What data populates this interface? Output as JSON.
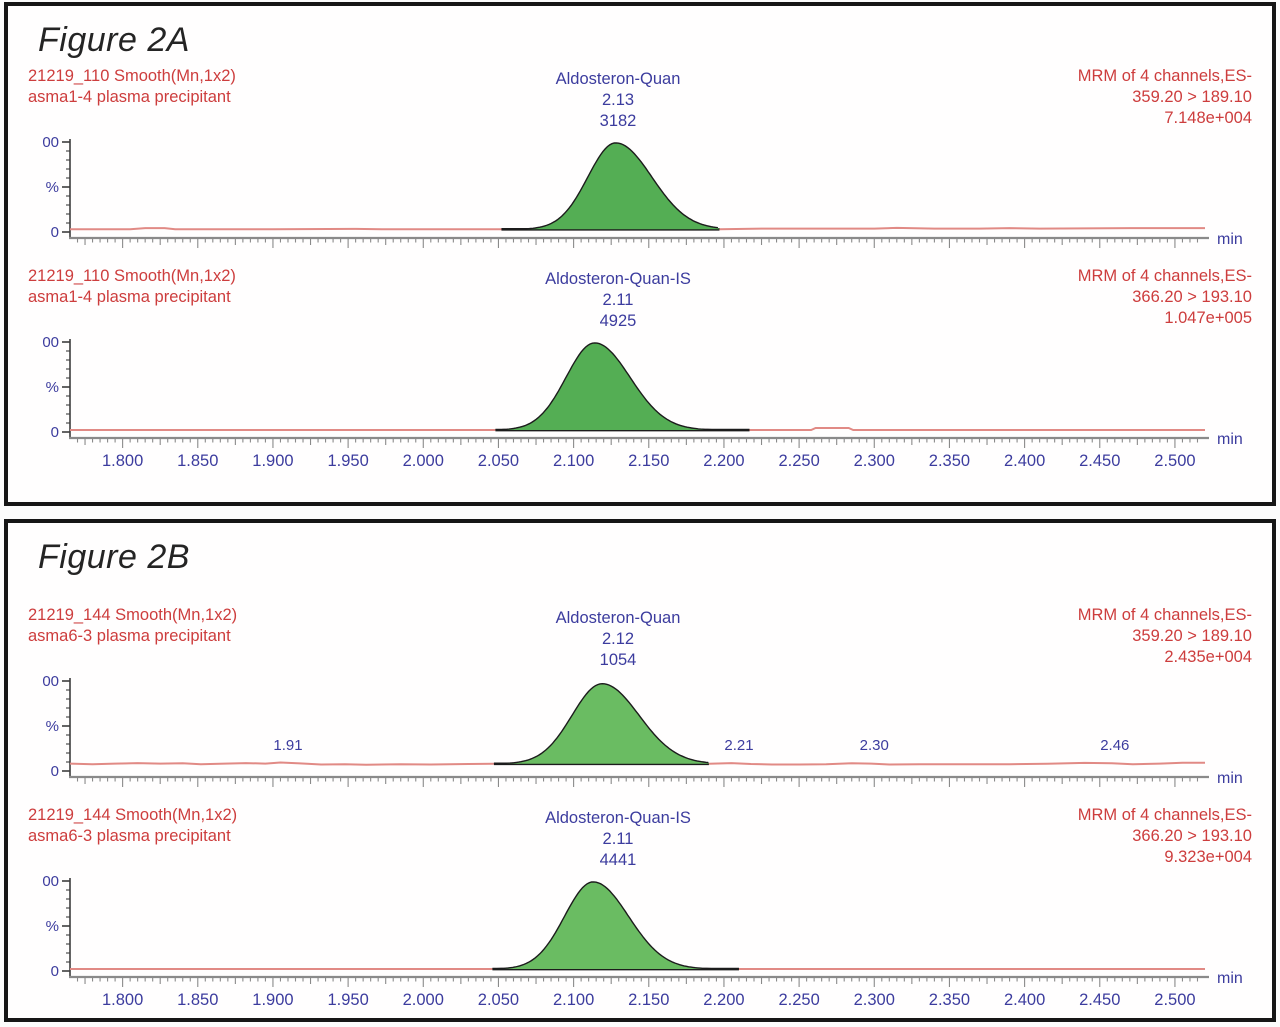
{
  "figures": [
    {
      "title": "Figure 2A"
    },
    {
      "title": "Figure 2B"
    }
  ],
  "axis": {
    "x_tick_labels": [
      "1.800",
      "1.850",
      "1.900",
      "1.950",
      "2.000",
      "2.050",
      "2.100",
      "2.150",
      "2.200",
      "2.250",
      "2.300",
      "2.350",
      "2.400",
      "2.450",
      "2.500"
    ],
    "x_unit_label": "min",
    "y_axis_labels": [
      "00",
      "%",
      "0"
    ]
  },
  "colors": {
    "red": "#cd3d3d",
    "blue": "#3c3c9e",
    "trace": "#e18a85",
    "axis": "#8a8a8a",
    "yaxis": "#3d3d3d",
    "outline": "#1c1c1c",
    "green_a": "#54ae54",
    "green_b": "#6abc62"
  },
  "chart_data": [
    {
      "type": "area",
      "header_left": [
        "21219_110 Smooth(Mn,1x2)",
        "asma1-4 plasma precipitant"
      ],
      "peak_label": {
        "name": "Aldosteron-Quan",
        "rt": "2.13",
        "area": "3182"
      },
      "header_right": [
        "MRM of 4 channels,ES-",
        "359.20 > 189.10",
        "7.148e+004"
      ],
      "x_min": 1.765,
      "x_max": 2.52,
      "show_x_labels": false,
      "peak_fill": "#54ae54",
      "peak": {
        "rt": 2.128,
        "height_pct": 99,
        "sigma_left": 0.0185,
        "sigma_right": 0.024,
        "int_start": 2.052,
        "int_end": 2.197,
        "base_pct": 3
      },
      "baseline": [
        [
          1.765,
          3
        ],
        [
          1.805,
          3
        ],
        [
          1.815,
          4.3
        ],
        [
          1.828,
          4.3
        ],
        [
          1.835,
          3
        ],
        [
          1.9,
          3
        ],
        [
          1.955,
          3.4
        ],
        [
          1.975,
          3
        ],
        [
          2.052,
          3
        ],
        [
          2.197,
          3
        ],
        [
          2.225,
          3.8
        ],
        [
          2.3,
          3.8
        ],
        [
          2.315,
          4.6
        ],
        [
          2.34,
          3.8
        ],
        [
          2.37,
          3.8
        ],
        [
          2.39,
          4.3
        ],
        [
          2.41,
          3.8
        ],
        [
          2.47,
          4.3
        ],
        [
          2.52,
          4.3
        ]
      ],
      "annotations": []
    },
    {
      "type": "area",
      "header_left": [
        "21219_110 Smooth(Mn,1x2)",
        "asma1-4 plasma precipitant"
      ],
      "peak_label": {
        "name": "Aldosteron-Quan-IS",
        "rt": "2.11",
        "area": "4925"
      },
      "header_right": [
        "MRM of 4 channels,ES-",
        "366.20 > 193.10",
        "1.047e+005"
      ],
      "x_min": 1.765,
      "x_max": 2.52,
      "show_x_labels": true,
      "peak_fill": "#54ae54",
      "peak": {
        "rt": 2.114,
        "height_pct": 99,
        "sigma_left": 0.019,
        "sigma_right": 0.0235,
        "int_start": 2.048,
        "int_end": 2.217,
        "base_pct": 2.2
      },
      "baseline": [
        [
          1.765,
          2.2
        ],
        [
          2.048,
          2.2
        ],
        [
          2.217,
          2.2
        ],
        [
          2.258,
          2.2
        ],
        [
          2.261,
          4.4
        ],
        [
          2.283,
          4.4
        ],
        [
          2.286,
          2.2
        ],
        [
          2.52,
          2.2
        ]
      ],
      "annotations": []
    },
    {
      "type": "area",
      "header_left": [
        "21219_144 Smooth(Mn,1x2)",
        "asma6-3 plasma precipitant"
      ],
      "peak_label": {
        "name": "Aldosteron-Quan",
        "rt": "2.12",
        "area": "1054"
      },
      "header_right": [
        "MRM of 4 channels,ES-",
        "359.20 > 189.10",
        "2.435e+004"
      ],
      "x_min": 1.765,
      "x_max": 2.52,
      "show_x_labels": false,
      "peak_fill": "#6abc62",
      "peak": {
        "rt": 2.119,
        "height_pct": 97,
        "sigma_left": 0.02,
        "sigma_right": 0.0245,
        "int_start": 2.047,
        "int_end": 2.19,
        "base_pct": 8
      },
      "baseline": [
        [
          1.765,
          8.2
        ],
        [
          1.78,
          7.4
        ],
        [
          1.795,
          8.2
        ],
        [
          1.81,
          8.8
        ],
        [
          1.825,
          8.2
        ],
        [
          1.84,
          8.6
        ],
        [
          1.852,
          7.6
        ],
        [
          1.868,
          8.2
        ],
        [
          1.882,
          8.8
        ],
        [
          1.895,
          8.2
        ],
        [
          1.905,
          9.4
        ],
        [
          1.918,
          8.4
        ],
        [
          1.932,
          7.2
        ],
        [
          1.948,
          7.6
        ],
        [
          1.962,
          7.0
        ],
        [
          1.985,
          7.6
        ],
        [
          2.005,
          7.2
        ],
        [
          2.03,
          7.8
        ],
        [
          2.047,
          8.0
        ],
        [
          2.19,
          8.0
        ],
        [
          2.205,
          8.8
        ],
        [
          2.218,
          7.8
        ],
        [
          2.232,
          7.2
        ],
        [
          2.25,
          7.2
        ],
        [
          2.268,
          7.6
        ],
        [
          2.285,
          8.6
        ],
        [
          2.298,
          8.2
        ],
        [
          2.31,
          7.2
        ],
        [
          2.33,
          7.6
        ],
        [
          2.36,
          7.6
        ],
        [
          2.39,
          7.6
        ],
        [
          2.415,
          8.0
        ],
        [
          2.44,
          9.0
        ],
        [
          2.458,
          8.6
        ],
        [
          2.472,
          7.6
        ],
        [
          2.49,
          8.2
        ],
        [
          2.505,
          9.2
        ],
        [
          2.52,
          9.2
        ]
      ],
      "annotations": [
        {
          "x": 1.91,
          "label": "1.91"
        },
        {
          "x": 2.21,
          "label": "2.21"
        },
        {
          "x": 2.3,
          "label": "2.30"
        },
        {
          "x": 2.46,
          "label": "2.46"
        }
      ]
    },
    {
      "type": "area",
      "header_left": [
        "21219_144 Smooth(Mn,1x2)",
        "asma6-3 plasma precipitant"
      ],
      "peak_label": {
        "name": "Aldosteron-Quan-IS",
        "rt": "2.11",
        "area": "4441"
      },
      "header_right": [
        "MRM of 4 channels,ES-",
        "366.20 > 193.10",
        "9.323e+004"
      ],
      "x_min": 1.765,
      "x_max": 2.52,
      "show_x_labels": true,
      "peak_fill": "#6abc62",
      "peak": {
        "rt": 2.113,
        "height_pct": 99,
        "sigma_left": 0.019,
        "sigma_right": 0.0235,
        "int_start": 2.046,
        "int_end": 2.21,
        "base_pct": 2.2
      },
      "baseline": [
        [
          1.765,
          2.2
        ],
        [
          2.046,
          2.2
        ],
        [
          2.21,
          2.2
        ],
        [
          2.52,
          2.2
        ]
      ],
      "annotations": []
    }
  ]
}
